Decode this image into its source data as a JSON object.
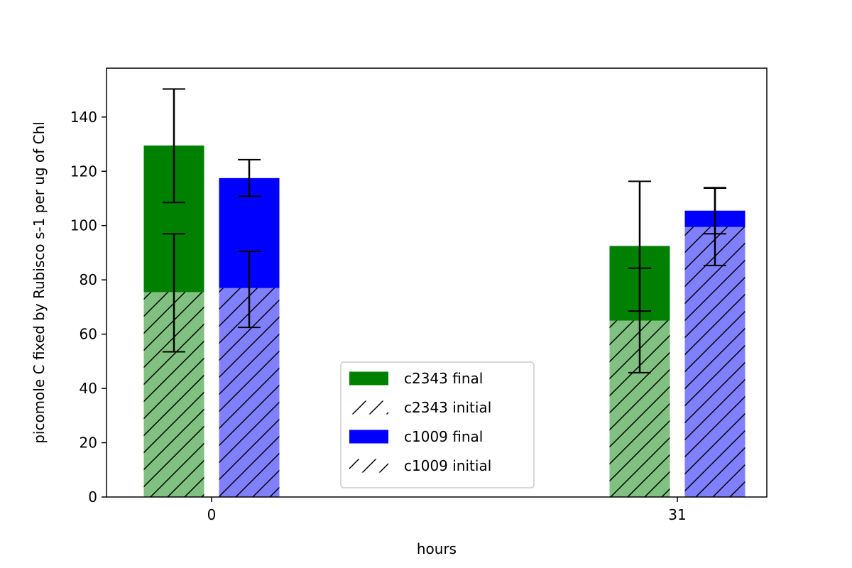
{
  "chart_data": {
    "type": "bar",
    "title": "",
    "xlabel": "hours",
    "ylabel": "picomole C fixed by Rubisco s-1 per ug of Chl",
    "categories": [
      "0",
      "31"
    ],
    "ylim": [
      0,
      158
    ],
    "yticks": [
      0,
      20,
      40,
      60,
      80,
      100,
      120,
      140
    ],
    "grid": false,
    "legend_position": "lower-center",
    "series": [
      {
        "name": "c2343 final",
        "values": [
          129.5,
          92.5
        ],
        "error": [
          [
            108.5,
            150.3
          ],
          [
            68.5,
            116.3
          ]
        ],
        "color": "#008000",
        "hatch": false
      },
      {
        "name": "c2343 initial",
        "values": [
          75.5,
          65.0
        ],
        "error": [
          [
            53.5,
            97.0
          ],
          [
            45.8,
            84.3
          ]
        ],
        "color": "#80c080",
        "hatch": true
      },
      {
        "name": "c1009 final",
        "values": [
          117.5,
          105.5
        ],
        "error": [
          [
            110.8,
            124.3
          ],
          [
            97.0,
            114.0
          ]
        ],
        "color": "#0000ff",
        "hatch": false
      },
      {
        "name": "c1009 initial",
        "values": [
          77.0,
          99.5
        ],
        "error": [
          [
            62.5,
            90.5
          ],
          [
            85.3,
            113.8
          ]
        ],
        "color": "#8080ff",
        "hatch": true
      }
    ]
  }
}
